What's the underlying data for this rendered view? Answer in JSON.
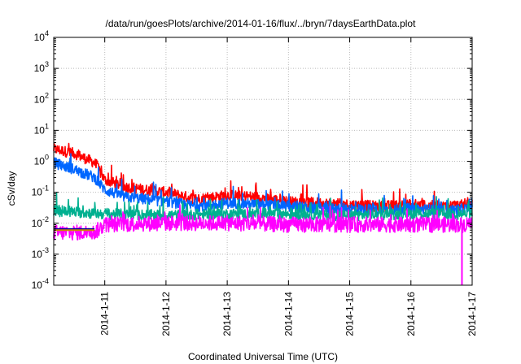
{
  "chart_data": {
    "type": "line",
    "title": "/data/run/goesPlots/archive/2014-01-16/flux/../bryn/7daysEarthData.plot",
    "xlabel": "Coordinated Universal Time (UTC)",
    "ylabel": "cSv/day",
    "yscale": "log",
    "ylim": [
      0.0001,
      10000
    ],
    "xlim": [
      "2014-01-10 04:00",
      "2014-01-17 00:00"
    ],
    "ytick_labels": [
      {
        "base": "10",
        "exp": "-4"
      },
      {
        "base": "10",
        "exp": "-3"
      },
      {
        "base": "10",
        "exp": "-2"
      },
      {
        "base": "10",
        "exp": "-1"
      },
      {
        "base": "10",
        "exp": "0"
      },
      {
        "base": "10",
        "exp": "1"
      },
      {
        "base": "10",
        "exp": "2"
      },
      {
        "base": "10",
        "exp": "3"
      },
      {
        "base": "10",
        "exp": "4"
      }
    ],
    "xtick_labels": [
      "2014-1-11",
      "2014-1-12",
      "2014-1-13",
      "2014-1-14",
      "2014-1-15",
      "2014-1-16",
      "2014-1-17"
    ],
    "grid": true,
    "series": [
      {
        "color": "#ff0000",
        "x": [
          "2014-01-10 04:00",
          "2014-01-10 12:00",
          "2014-01-10 20:00",
          "2014-01-11 00:00",
          "2014-01-11 08:00",
          "2014-01-11 16:00",
          "2014-01-12 00:00",
          "2014-01-12 12:00",
          "2014-01-13 00:00",
          "2014-01-13 12:00",
          "2014-01-14 00:00",
          "2014-01-14 12:00",
          "2014-01-15 00:00",
          "2014-01-15 12:00",
          "2014-01-16 00:00",
          "2014-01-16 12:00",
          "2014-01-17 00:00"
        ],
        "y": [
          2.5,
          1.8,
          0.9,
          0.25,
          0.15,
          0.12,
          0.1,
          0.06,
          0.08,
          0.07,
          0.05,
          0.045,
          0.04,
          0.035,
          0.04,
          0.035,
          0.04
        ]
      },
      {
        "color": "#0066ff",
        "x": [
          "2014-01-10 04:00",
          "2014-01-10 12:00",
          "2014-01-10 20:00",
          "2014-01-11 00:00",
          "2014-01-11 08:00",
          "2014-01-11 16:00",
          "2014-01-12 00:00",
          "2014-01-12 12:00",
          "2014-01-13 00:00",
          "2014-01-13 12:00",
          "2014-01-14 00:00",
          "2014-01-14 12:00",
          "2014-01-15 00:00",
          "2014-01-15 12:00",
          "2014-01-16 00:00",
          "2014-01-16 12:00",
          "2014-01-17 00:00"
        ],
        "y": [
          0.9,
          0.55,
          0.3,
          0.12,
          0.07,
          0.06,
          0.05,
          0.035,
          0.045,
          0.04,
          0.035,
          0.03,
          0.03,
          0.025,
          0.03,
          0.025,
          0.03
        ]
      },
      {
        "color": "#00b090",
        "x": [
          "2014-01-10 04:00",
          "2014-01-10 16:00",
          "2014-01-11 00:00",
          "2014-01-12 00:00",
          "2014-01-13 00:00",
          "2014-01-14 00:00",
          "2014-01-15 00:00",
          "2014-01-16 00:00",
          "2014-01-17 00:00"
        ],
        "y": [
          0.025,
          0.022,
          0.02,
          0.018,
          0.02,
          0.02,
          0.018,
          0.02,
          0.02
        ]
      },
      {
        "color": "#ff00ff",
        "x": [
          "2014-01-10 04:00",
          "2014-01-10 20:00",
          "2014-01-11 00:00",
          "2014-01-12 00:00",
          "2014-01-13 00:00",
          "2014-01-14 00:00",
          "2014-01-15 00:00",
          "2014-01-16 00:00",
          "2014-01-16 20:00",
          "2014-01-17 00:00"
        ],
        "y": [
          0.005,
          0.005,
          0.009,
          0.01,
          0.01,
          0.009,
          0.009,
          0.009,
          0.009,
          0.01
        ]
      },
      {
        "color": "#000099",
        "x": [
          "2014-01-10 04:00",
          "2014-01-10 20:00"
        ],
        "y": [
          0.0065,
          0.0065
        ]
      },
      {
        "color": "#cc8800",
        "x": [
          "2014-01-10 04:00",
          "2014-01-10 20:00"
        ],
        "y": [
          0.006,
          0.006
        ]
      }
    ],
    "spikes": [
      {
        "series_color": "#ff00ff",
        "x": "2014-01-16 20:00",
        "y_min": 0.0001
      }
    ]
  }
}
